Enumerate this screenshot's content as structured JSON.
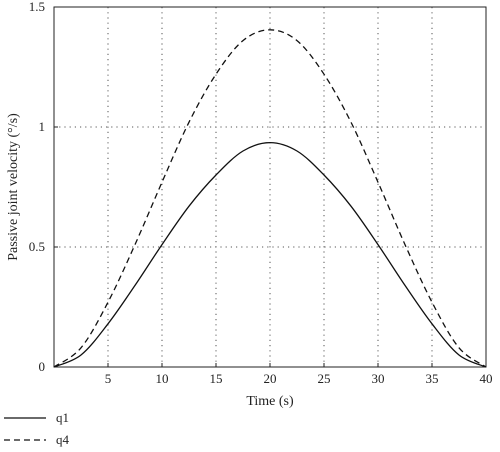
{
  "chart_data": {
    "type": "line",
    "xlabel": "Time (s)",
    "ylabel": "Passive joint velocity (°/s)",
    "xlim": [
      0,
      40
    ],
    "ylim": [
      0,
      1.5
    ],
    "x_ticks": [
      5,
      10,
      15,
      20,
      25,
      30,
      35,
      40
    ],
    "x_tick_labels": [
      "5",
      "10",
      "15",
      "20",
      "25",
      "30",
      "35",
      "40"
    ],
    "y_ticks": [
      0,
      0.5,
      1,
      1.5
    ],
    "y_tick_labels": [
      "0",
      "0.5",
      "1",
      "1.5"
    ],
    "grid": true,
    "legend_position": "bottom-left",
    "x": [
      0,
      2.5,
      5,
      7.5,
      10,
      12.5,
      15,
      17.5,
      20,
      22.5,
      25,
      27.5,
      30,
      32.5,
      35,
      37.5,
      40
    ],
    "series": [
      {
        "name": "q1",
        "line_style": "solid",
        "color": "#111111",
        "values": [
          0,
          0.05,
          0.18,
          0.34,
          0.51,
          0.67,
          0.8,
          0.9,
          0.935,
          0.9,
          0.8,
          0.67,
          0.51,
          0.34,
          0.18,
          0.05,
          0
        ]
      },
      {
        "name": "q4",
        "line_style": "dashed",
        "color": "#111111",
        "values": [
          0,
          0.08,
          0.27,
          0.51,
          0.77,
          1.02,
          1.22,
          1.36,
          1.405,
          1.36,
          1.22,
          1.02,
          0.77,
          0.51,
          0.27,
          0.08,
          0
        ]
      }
    ]
  }
}
